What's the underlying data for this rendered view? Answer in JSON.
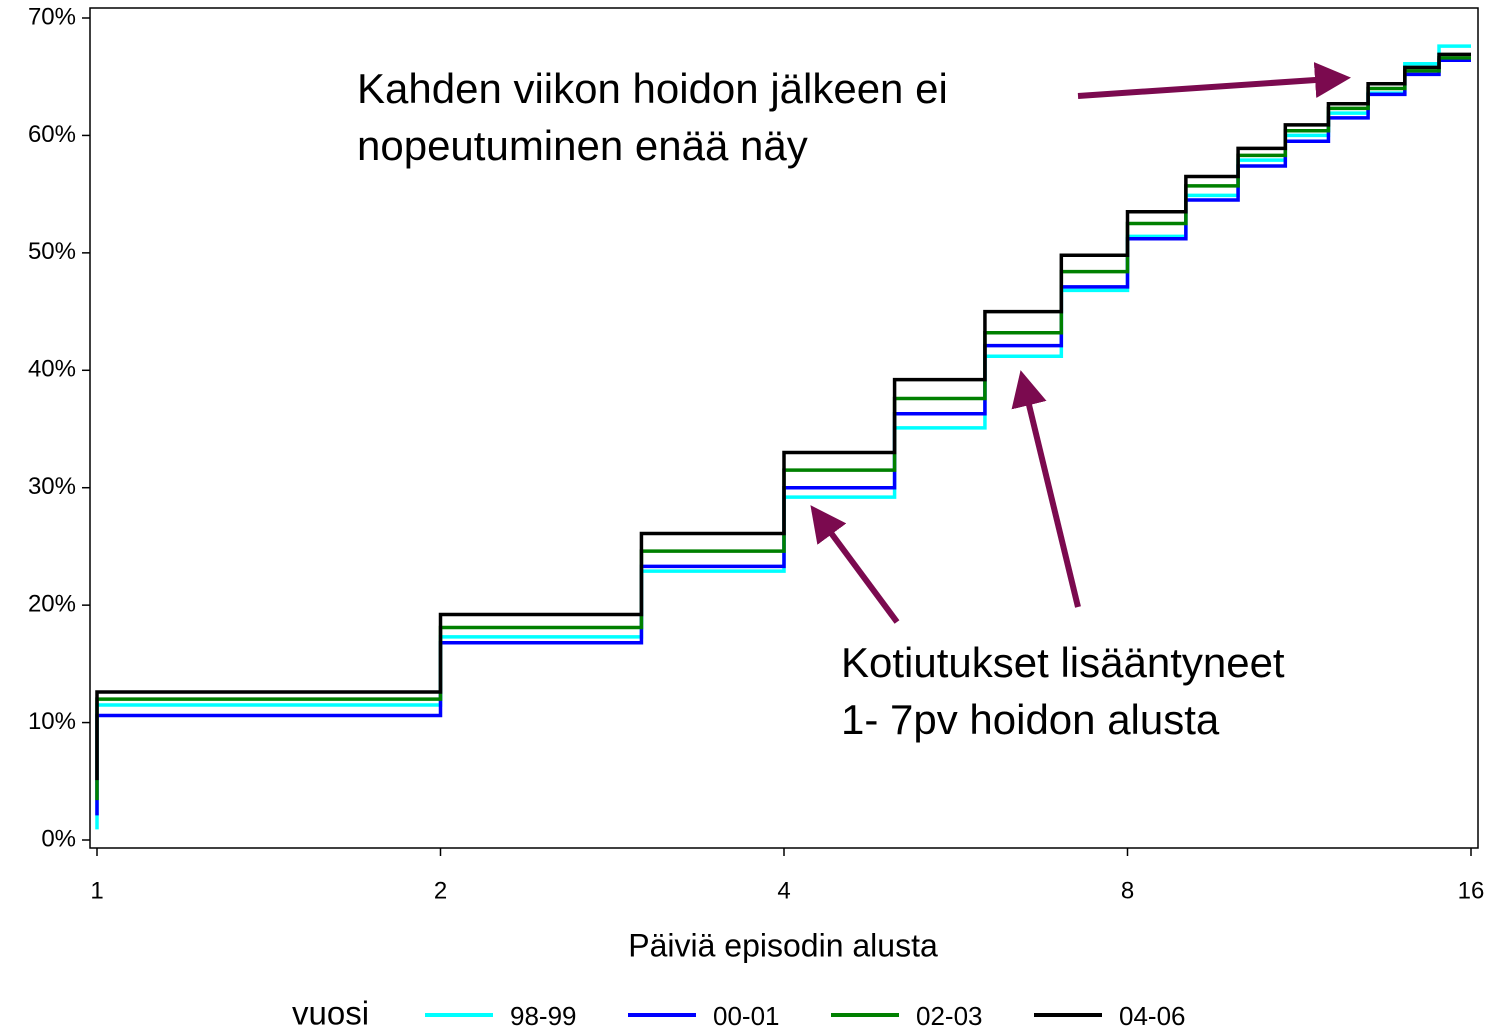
{
  "chart_data": {
    "type": "step",
    "x_label": "Päiviä episodin alusta",
    "legend_title": "vuosi",
    "x": [
      1,
      1,
      2,
      3,
      4,
      5,
      6,
      7,
      8,
      9,
      10,
      11,
      12,
      13,
      14,
      15,
      16
    ],
    "xlim": [
      1,
      16
    ],
    "xticks": [
      1,
      2,
      4,
      8,
      16
    ],
    "xscale": "log2",
    "ylim": [
      0,
      70
    ],
    "yticks": [
      {
        "value": 0,
        "label": "0%"
      },
      {
        "value": 10,
        "label": "10%"
      },
      {
        "value": 20,
        "label": "20%"
      },
      {
        "value": 30,
        "label": "30%"
      },
      {
        "value": 40,
        "label": "40%"
      },
      {
        "value": 50,
        "label": "50%"
      },
      {
        "value": 60,
        "label": "60%"
      },
      {
        "value": 70,
        "label": "70%"
      }
    ],
    "series": [
      {
        "name": "98-99",
        "color": "#00ffff",
        "values": [
          0.9,
          11.5,
          17.3,
          22.9,
          29.2,
          35.1,
          41.2,
          46.8,
          51.4,
          54.9,
          57.9,
          60.0,
          61.9,
          63.6,
          66.1,
          67.6,
          67.6
        ]
      },
      {
        "name": "00-01",
        "color": "#0000ff",
        "values": [
          2.1,
          10.6,
          16.8,
          23.3,
          30.0,
          36.3,
          42.1,
          47.1,
          51.2,
          54.5,
          57.4,
          59.5,
          61.5,
          63.5,
          65.2,
          66.4,
          66.4
        ]
      },
      {
        "name": "02-03",
        "color": "#008000",
        "values": [
          3.4,
          12.0,
          18.1,
          24.6,
          31.5,
          37.6,
          43.2,
          48.4,
          52.5,
          55.7,
          58.3,
          60.4,
          62.3,
          64.0,
          65.5,
          66.6,
          66.6
        ]
      },
      {
        "name": "04-06",
        "color": "#000000",
        "values": [
          5.1,
          12.6,
          19.2,
          26.1,
          33.0,
          39.2,
          45.0,
          49.8,
          53.5,
          56.5,
          58.9,
          60.9,
          62.7,
          64.4,
          65.8,
          66.9,
          66.9
        ]
      }
    ],
    "annotations": [
      {
        "lines": [
          "Kahden viikon hoidon jälkeen ei",
          "nopeutuminen enää näy"
        ]
      },
      {
        "lines": [
          "Kotiutukset lisääntyneet",
          "1- 7pv hoidon alusta"
        ]
      }
    ]
  }
}
